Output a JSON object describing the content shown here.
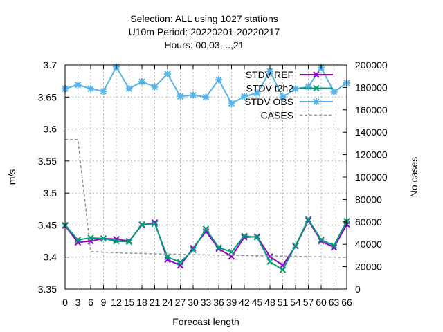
{
  "chart_data": {
    "type": "line",
    "title_lines": [
      "Selection: ALL using  1027 stations",
      "U10m   Period: 20220201-20220217",
      "Hours:  00,03,...,21"
    ],
    "xlabel": "Forecast length",
    "ylabel": "m/s",
    "y2label": "No cases",
    "x_ticks": [
      0,
      3,
      6,
      9,
      12,
      15,
      18,
      21,
      24,
      27,
      30,
      33,
      36,
      39,
      42,
      45,
      48,
      51,
      54,
      57,
      60,
      63,
      66
    ],
    "x_tick_labels": [
      "0",
      "3",
      "6",
      "9",
      "12",
      "15",
      "18",
      "21",
      "24",
      "27",
      "30",
      "33",
      "36",
      "39",
      "42",
      "45",
      "48",
      "51",
      "54",
      "57",
      "60",
      "63",
      "66"
    ],
    "xlim": [
      0,
      66
    ],
    "ylim": [
      3.35,
      3.7
    ],
    "y_ticks": [
      3.35,
      3.4,
      3.45,
      3.5,
      3.55,
      3.6,
      3.65,
      3.7
    ],
    "y_tick_labels": [
      "3.35",
      "3.4",
      "3.45",
      "3.5",
      "3.55",
      "3.6",
      "3.65",
      "3.7"
    ],
    "y2lim": [
      0,
      200000
    ],
    "y2_ticks": [
      0,
      20000,
      40000,
      60000,
      80000,
      100000,
      120000,
      140000,
      160000,
      180000,
      200000
    ],
    "y2_tick_labels": [
      "0",
      "20000",
      "40000",
      "60000",
      "80000",
      "100000",
      "120000",
      "140000",
      "160000",
      "180000",
      "200000"
    ],
    "grid": true,
    "legend_position": "top-right",
    "x": [
      0,
      3,
      6,
      9,
      12,
      15,
      18,
      21,
      24,
      27,
      30,
      33,
      36,
      39,
      42,
      45,
      48,
      51,
      54,
      57,
      60,
      63,
      66
    ],
    "series": [
      {
        "name": "STDV REF",
        "color": "#9400d3",
        "marker": "x",
        "axis": "y",
        "values": [
          3.449,
          3.423,
          3.425,
          3.429,
          3.428,
          3.425,
          3.45,
          3.454,
          3.396,
          3.387,
          3.414,
          3.44,
          3.413,
          3.401,
          3.431,
          3.432,
          3.401,
          3.387,
          3.417,
          3.457,
          3.425,
          3.415,
          3.451
        ]
      },
      {
        "name": "STDV t2h2",
        "color": "#009e73",
        "marker": "x",
        "axis": "y",
        "values": [
          3.45,
          3.427,
          3.43,
          3.429,
          3.425,
          3.424,
          3.451,
          3.452,
          3.4,
          3.392,
          3.411,
          3.444,
          3.415,
          3.408,
          3.433,
          3.431,
          3.393,
          3.38,
          3.418,
          3.459,
          3.427,
          3.418,
          3.456
        ]
      },
      {
        "name": "STDV OBS",
        "color": "#56b4e9",
        "marker": "asterisk",
        "axis": "y",
        "values": [
          3.663,
          3.669,
          3.663,
          3.659,
          3.697,
          3.663,
          3.674,
          3.666,
          3.686,
          3.651,
          3.653,
          3.65,
          3.677,
          3.64,
          3.651,
          3.656,
          3.69,
          3.65,
          3.663,
          3.666,
          3.696,
          3.658,
          3.672
        ]
      },
      {
        "name": "CASES",
        "color": "#909090",
        "marker": "none",
        "axis": "y2",
        "dashed": true,
        "values": [
          133500,
          133500,
          33500,
          33000,
          32500,
          32000,
          31800,
          31500,
          31300,
          31000,
          30800,
          30600,
          30400,
          30200,
          30000,
          29800,
          29600,
          29400,
          29200,
          29000,
          28800,
          28600,
          28400
        ]
      }
    ]
  }
}
